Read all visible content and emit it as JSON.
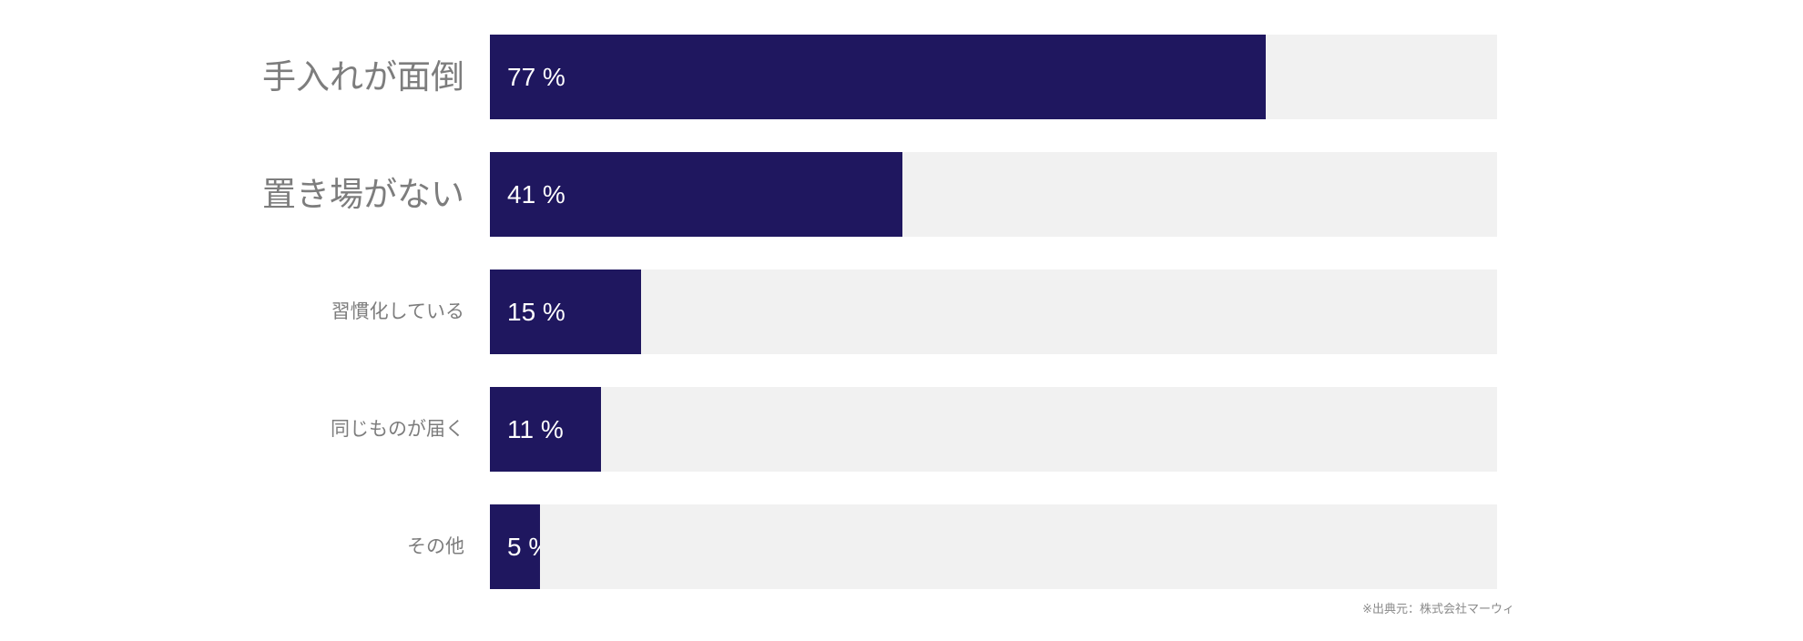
{
  "chart_data": {
    "type": "bar",
    "orientation": "horizontal",
    "title": "",
    "xlabel": "",
    "ylabel": "",
    "xlim": [
      0,
      100
    ],
    "grid": false,
    "legend": "none",
    "categories": [
      "手入れが面倒",
      "置き場がない",
      "習慣化している",
      "同じものが届く",
      "その他"
    ],
    "values": [
      77,
      41,
      15,
      11,
      5
    ],
    "value_labels": [
      "77 %",
      "41 %",
      "15 %",
      "11 %",
      "5 %"
    ],
    "emphasized": [
      true,
      true,
      false,
      false,
      false
    ],
    "bar_color": "#1f175f",
    "track_color": "#f1f1f1",
    "label_color": "#7d7d7d",
    "value_text_color": "#ffffff"
  },
  "source_note": "※出典元：株式会社マーウィ"
}
